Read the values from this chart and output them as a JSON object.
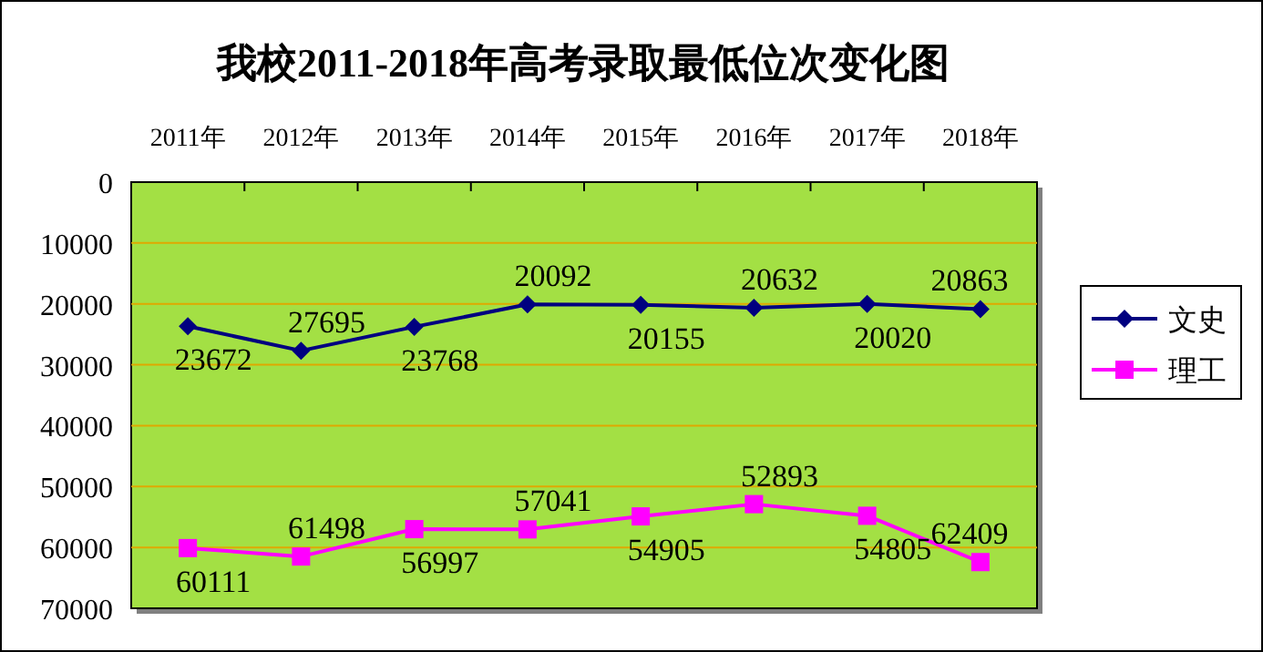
{
  "chart_data": {
    "type": "line",
    "title": "我校2011-2018年高考录取最低位次变化图",
    "categories": [
      "2011年",
      "2012年",
      "2013年",
      "2014年",
      "2015年",
      "2016年",
      "2017年",
      "2018年"
    ],
    "series": [
      {
        "name": "文史",
        "color": "#000080",
        "marker": "diamond",
        "values": [
          23672,
          27695,
          23768,
          20092,
          20155,
          20632,
          20020,
          20863
        ]
      },
      {
        "name": "理工",
        "color": "#ff00ff",
        "marker": "square",
        "values": [
          60111,
          61498,
          56997,
          57041,
          54905,
          52893,
          54805,
          62409
        ]
      }
    ],
    "ylim": [
      70000,
      0
    ],
    "yticks": [
      0,
      10000,
      20000,
      30000,
      40000,
      50000,
      60000,
      70000
    ],
    "grid": "y",
    "legend": "right",
    "data_labels": true
  }
}
